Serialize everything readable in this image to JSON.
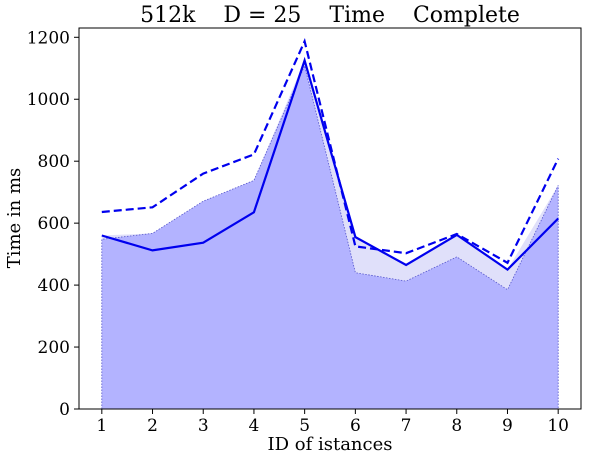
{
  "chart_data": {
    "type": "line",
    "title": "512k    D = 25    Time    Complete",
    "xlabel": "ID of istances",
    "ylabel": "Time in ms",
    "x": [
      1,
      2,
      3,
      4,
      5,
      6,
      7,
      8,
      9,
      10
    ],
    "xlim": [
      0.55,
      10.45
    ],
    "ylim": [
      0,
      1230
    ],
    "yticks": [
      0,
      200,
      400,
      600,
      800,
      1000,
      1200
    ],
    "grid": false,
    "legend": "none",
    "series": [
      {
        "style": "solid line",
        "color": "#0000ee",
        "values": [
          560,
          512,
          537,
          635,
          1125,
          555,
          465,
          562,
          450,
          615
        ]
      },
      {
        "style": "dashed line",
        "color": "#0000ee",
        "values": [
          636,
          651,
          760,
          822,
          1187,
          525,
          503,
          565,
          472,
          808
        ]
      },
      {
        "style": "band upper",
        "color": "#e0e0fa",
        "values": [
          560,
          567,
          671,
          738,
          1125,
          555,
          465,
          562,
          450,
          722
        ]
      },
      {
        "style": "filled area",
        "color": "#b3b3ff",
        "values": [
          548,
          567,
          671,
          738,
          1108,
          440,
          413,
          491,
          385,
          722
        ]
      }
    ]
  }
}
